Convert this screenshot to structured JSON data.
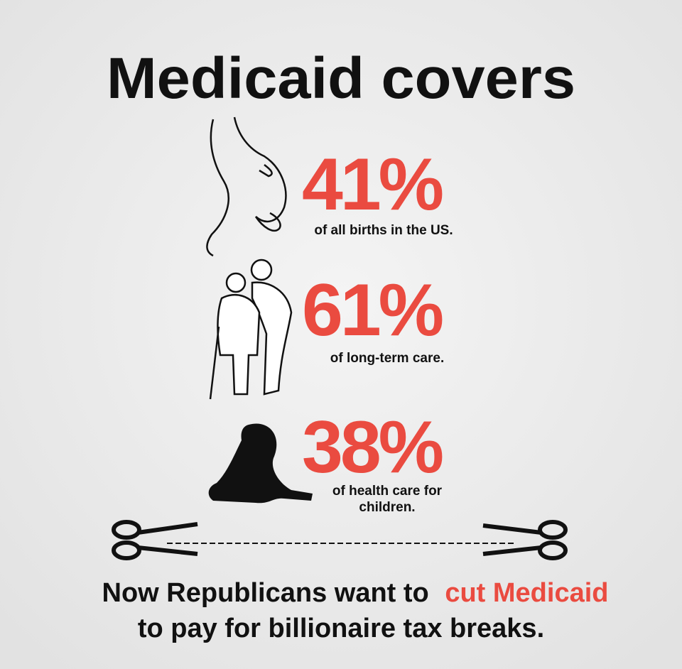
{
  "title": "Medicaid covers",
  "stats": [
    {
      "figure": "41%",
      "caption": [
        "of all births in the US."
      ]
    },
    {
      "figure": "61%",
      "caption": [
        "of long-term care."
      ]
    },
    {
      "figure": "38%",
      "caption": [
        "of health care for",
        "children."
      ]
    }
  ],
  "footer": {
    "line1": [
      "Now Republicans want to",
      "cut Medicaid"
    ],
    "line2": "to pay for billionaire tax breaks."
  }
}
